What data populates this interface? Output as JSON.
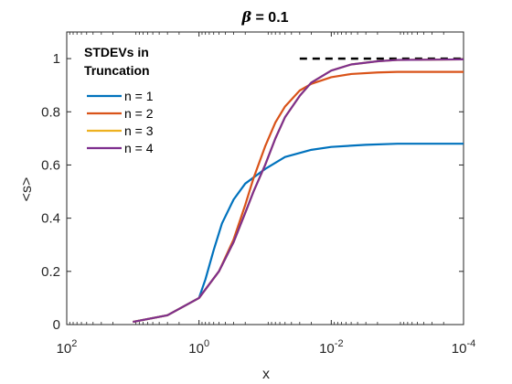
{
  "chart_data": {
    "type": "line",
    "title": {
      "symbol": "β",
      "text": " = 0.1"
    },
    "xlabel": "x",
    "ylabel": "<s>",
    "xscale": "log",
    "xaxis_direction": "reversed",
    "xlim": [
      100,
      0.0001
    ],
    "ylim": [
      0,
      1.1
    ],
    "xticks": [
      {
        "value": 100,
        "base": "10",
        "exp": "2"
      },
      {
        "value": 1,
        "base": "10",
        "exp": "0"
      },
      {
        "value": 0.01,
        "base": "10",
        "exp": "-2"
      },
      {
        "value": 0.0001,
        "base": "10",
        "exp": "-4"
      }
    ],
    "yticks": [
      {
        "value": 0,
        "label": "0"
      },
      {
        "value": 0.2,
        "label": "0.2"
      },
      {
        "value": 0.4,
        "label": "0.4"
      },
      {
        "value": 0.6,
        "label": "0.6"
      },
      {
        "value": 0.8,
        "label": "0.8"
      },
      {
        "value": 1,
        "label": "1"
      }
    ],
    "grid": false,
    "legend": {
      "placement": "top-left",
      "title_lines": [
        "STDEVs in",
        "Truncation"
      ]
    },
    "series": [
      {
        "name": "n = 1",
        "color": "#0072BD",
        "points": [
          [
            10,
            0.01
          ],
          [
            3,
            0.035
          ],
          [
            1,
            0.1
          ],
          [
            0.8,
            0.17
          ],
          [
            0.6,
            0.28
          ],
          [
            0.45,
            0.38
          ],
          [
            0.3,
            0.47
          ],
          [
            0.2,
            0.53
          ],
          [
            0.1,
            0.585
          ],
          [
            0.05,
            0.63
          ],
          [
            0.02,
            0.657
          ],
          [
            0.01,
            0.668
          ],
          [
            0.003,
            0.676
          ],
          [
            0.001,
            0.68
          ],
          [
            0.0001,
            0.68
          ]
        ]
      },
      {
        "name": "n = 2",
        "color": "#D95319",
        "points": [
          [
            10,
            0.01
          ],
          [
            3,
            0.035
          ],
          [
            1,
            0.1
          ],
          [
            0.5,
            0.2
          ],
          [
            0.3,
            0.32
          ],
          [
            0.2,
            0.45
          ],
          [
            0.15,
            0.55
          ],
          [
            0.1,
            0.67
          ],
          [
            0.07,
            0.76
          ],
          [
            0.05,
            0.82
          ],
          [
            0.03,
            0.88
          ],
          [
            0.02,
            0.905
          ],
          [
            0.01,
            0.93
          ],
          [
            0.005,
            0.942
          ],
          [
            0.002,
            0.948
          ],
          [
            0.001,
            0.95
          ],
          [
            0.0001,
            0.95
          ]
        ]
      },
      {
        "name": "n = 3",
        "color": "#EDB120",
        "points": [
          [
            10,
            0.01
          ],
          [
            3,
            0.035
          ],
          [
            1,
            0.1
          ],
          [
            0.5,
            0.2
          ],
          [
            0.3,
            0.31
          ],
          [
            0.2,
            0.42
          ],
          [
            0.15,
            0.5
          ],
          [
            0.1,
            0.6
          ],
          [
            0.07,
            0.7
          ],
          [
            0.05,
            0.78
          ],
          [
            0.03,
            0.86
          ],
          [
            0.02,
            0.91
          ],
          [
            0.01,
            0.955
          ],
          [
            0.005,
            0.978
          ],
          [
            0.002,
            0.99
          ],
          [
            0.001,
            0.995
          ],
          [
            0.0001,
            0.997
          ]
        ]
      },
      {
        "name": "n = 4",
        "color": "#7E2F8E",
        "points": [
          [
            10,
            0.01
          ],
          [
            3,
            0.035
          ],
          [
            1,
            0.1
          ],
          [
            0.5,
            0.2
          ],
          [
            0.3,
            0.31
          ],
          [
            0.2,
            0.42
          ],
          [
            0.15,
            0.5
          ],
          [
            0.1,
            0.6
          ],
          [
            0.07,
            0.7
          ],
          [
            0.05,
            0.78
          ],
          [
            0.03,
            0.86
          ],
          [
            0.02,
            0.91
          ],
          [
            0.01,
            0.955
          ],
          [
            0.005,
            0.978
          ],
          [
            0.002,
            0.99
          ],
          [
            0.001,
            0.995
          ],
          [
            0.0001,
            0.997
          ]
        ]
      }
    ],
    "reference_line": {
      "y": 1,
      "x_range": [
        0.03,
        0.0001
      ],
      "color": "#000000",
      "style": "dashed"
    }
  }
}
